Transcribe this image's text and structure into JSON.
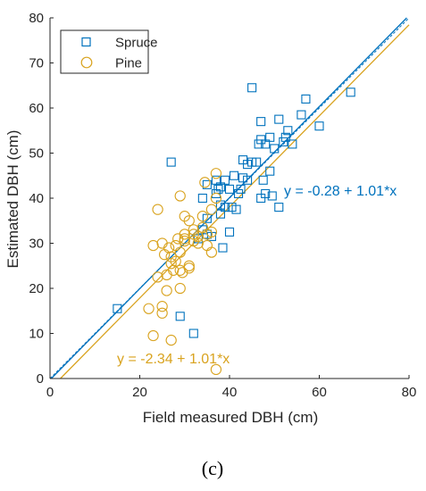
{
  "panel_label": "(c)",
  "chart_data": {
    "type": "scatter",
    "xlabel": "Field measured DBH (cm)",
    "ylabel": "Estimated DBH (cm)",
    "xlim": [
      0,
      80
    ],
    "ylim": [
      0,
      80
    ],
    "xticks": [
      0,
      20,
      40,
      60,
      80
    ],
    "yticks": [
      0,
      10,
      20,
      30,
      40,
      50,
      60,
      70,
      80
    ],
    "grid": false,
    "legend_position": "top-left",
    "reference_line": {
      "style": "dashed",
      "color": "#0072BD",
      "x": [
        0,
        80
      ],
      "y": [
        0,
        80
      ]
    },
    "series": [
      {
        "name": "Spruce",
        "marker": "square",
        "color": "#0072BD",
        "fit": {
          "label": "y = -0.28 + 1.01*x",
          "intercept": -0.28,
          "slope": 1.01
        },
        "points": [
          [
            15,
            15.5
          ],
          [
            27,
            48
          ],
          [
            29,
            13.8
          ],
          [
            32,
            10
          ],
          [
            33,
            31
          ],
          [
            34,
            33
          ],
          [
            34,
            40
          ],
          [
            35,
            43
          ],
          [
            35,
            35.5
          ],
          [
            35,
            32
          ],
          [
            36,
            31.5
          ],
          [
            37,
            41
          ],
          [
            37,
            44
          ],
          [
            37.5,
            42
          ],
          [
            38,
            38.5
          ],
          [
            38,
            42.5
          ],
          [
            38,
            36.5
          ],
          [
            38.5,
            29
          ],
          [
            39,
            38
          ],
          [
            39,
            44
          ],
          [
            40,
            32.5
          ],
          [
            40,
            42
          ],
          [
            40.5,
            38
          ],
          [
            41,
            45
          ],
          [
            41.5,
            37.5
          ],
          [
            42,
            41
          ],
          [
            42.5,
            42
          ],
          [
            43,
            44.5
          ],
          [
            43,
            48.5
          ],
          [
            44,
            47.5
          ],
          [
            44,
            44
          ],
          [
            45,
            64.5
          ],
          [
            45,
            48
          ],
          [
            46,
            48
          ],
          [
            46.5,
            52
          ],
          [
            47,
            57
          ],
          [
            47,
            53
          ],
          [
            47,
            40
          ],
          [
            47.5,
            44
          ],
          [
            48,
            52
          ],
          [
            48,
            41
          ],
          [
            49,
            53.5
          ],
          [
            49,
            46
          ],
          [
            49.5,
            40.5
          ],
          [
            50,
            51
          ],
          [
            51,
            38
          ],
          [
            51,
            57.5
          ],
          [
            52,
            52.5
          ],
          [
            52.5,
            53.5
          ],
          [
            53,
            55
          ],
          [
            54,
            52
          ],
          [
            56,
            58.5
          ],
          [
            57,
            62
          ],
          [
            60,
            56
          ],
          [
            67,
            63.5
          ]
        ]
      },
      {
        "name": "Pine",
        "marker": "circle",
        "color": "#D9A31F",
        "fit": {
          "label": "y = -2.34 + 1.01*x",
          "intercept": -2.34,
          "slope": 1.01
        },
        "points": [
          [
            22,
            15.5
          ],
          [
            23,
            29.5
          ],
          [
            23,
            9.5
          ],
          [
            24,
            22.5
          ],
          [
            24,
            37.5
          ],
          [
            25,
            30
          ],
          [
            25,
            14.5
          ],
          [
            25,
            16
          ],
          [
            25.5,
            27.5
          ],
          [
            26,
            23
          ],
          [
            26,
            19.5
          ],
          [
            26.5,
            29
          ],
          [
            27,
            8.5
          ],
          [
            27,
            27
          ],
          [
            27,
            25.5
          ],
          [
            27.5,
            24
          ],
          [
            28,
            29.5
          ],
          [
            28,
            26
          ],
          [
            28.5,
            31
          ],
          [
            29,
            28
          ],
          [
            29,
            24
          ],
          [
            29,
            20
          ],
          [
            29,
            40.5
          ],
          [
            29.5,
            23.5
          ],
          [
            30,
            32
          ],
          [
            30,
            31
          ],
          [
            30,
            30.5
          ],
          [
            30,
            36
          ],
          [
            31,
            24.5
          ],
          [
            31,
            25
          ],
          [
            31,
            35
          ],
          [
            32,
            30.5
          ],
          [
            32,
            33
          ],
          [
            32,
            32
          ],
          [
            33,
            31.5
          ],
          [
            33,
            30
          ],
          [
            34,
            33.5
          ],
          [
            34,
            36
          ],
          [
            34.5,
            43.5
          ],
          [
            35,
            32
          ],
          [
            35,
            29.5
          ],
          [
            36,
            28
          ],
          [
            36,
            32.5
          ],
          [
            36,
            37.5
          ],
          [
            37,
            45.5
          ],
          [
            37,
            40
          ],
          [
            37,
            2
          ]
        ]
      }
    ]
  }
}
